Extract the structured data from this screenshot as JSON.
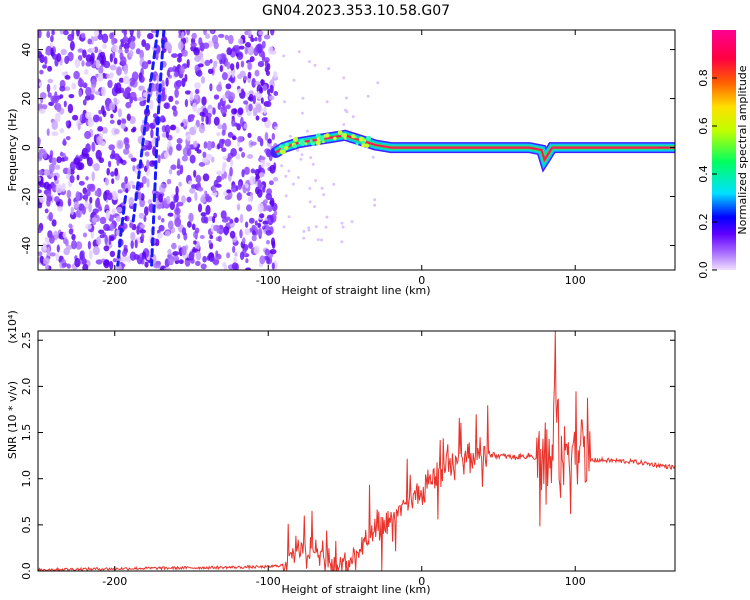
{
  "title": "GN04.2023.353.10.58.G07",
  "chart_data": [
    {
      "type": "heatmap",
      "xlabel": "Height of straight line (km)",
      "ylabel": "Frequency (Hz)",
      "xlim": [
        -250,
        165
      ],
      "ylim": [
        -50,
        48
      ],
      "xticks": [
        -200,
        -100,
        0,
        100
      ],
      "yticks": [
        -40,
        -20,
        0,
        20,
        40
      ],
      "colorbar": {
        "label": "Normalized spectral amplitude",
        "range": [
          0,
          1
        ],
        "ticks": [
          "0.0",
          "0.2",
          "0.4",
          "0.6",
          "0.8"
        ],
        "colormap": [
          "#f0e0ff",
          "#a060ff",
          "#6000ff",
          "#0000ff",
          "#00e0ff",
          "#00ff60",
          "#c0ff00",
          "#ffe000",
          "#ff6000",
          "#ff0040",
          "#ff0090"
        ]
      },
      "trace": {
        "x": [
          -95,
          -90,
          -80,
          -70,
          -60,
          -50,
          -40,
          -30,
          -20,
          -10,
          0,
          20,
          40,
          60,
          70,
          78,
          80,
          85,
          100,
          110,
          165
        ],
        "y": [
          -2,
          0,
          2,
          3,
          4,
          5,
          3,
          1,
          0,
          0,
          0,
          0,
          0,
          0,
          0,
          -1,
          -5,
          0,
          0,
          0,
          0
        ]
      },
      "noise_region": [
        -250,
        -95
      ],
      "streaks": [
        {
          "x": [
            -172,
            -180,
            -188
          ],
          "y": [
            48,
            10,
            -30
          ]
        },
        {
          "x": [
            -168,
            -172,
            -176
          ],
          "y": [
            48,
            10,
            -48
          ]
        },
        {
          "x": [
            -193,
            -196,
            -198
          ],
          "y": [
            -20,
            -35,
            -48
          ]
        }
      ]
    },
    {
      "type": "line",
      "xlabel": "Height of straight line (km)",
      "ylabel": "SNR (10 * v/v)",
      "scale_label": "(x10⁴)",
      "xlim": [
        -250,
        165
      ],
      "ylim": [
        0,
        2.6
      ],
      "xticks": [
        -200,
        -100,
        0,
        100
      ],
      "yticks": [
        0.0,
        0.5,
        1.0,
        1.5,
        2.0,
        2.5
      ],
      "ytick_labels": [
        "0.0",
        "0.5",
        "1.0",
        "1.5",
        "2.0",
        "2.5"
      ],
      "series": [
        {
          "color": "#e8322a",
          "x": [
            -250,
            -200,
            -150,
            -100,
            -90,
            -85,
            -80,
            -70,
            -60,
            -50,
            -45,
            -40,
            -30,
            -20,
            -10,
            0,
            10,
            20,
            30,
            40,
            50,
            60,
            70,
            80,
            85,
            88,
            90,
            95,
            100,
            105,
            110,
            120,
            140,
            165
          ],
          "y": [
            0.0,
            0.01,
            0.02,
            0.03,
            0.05,
            0.2,
            0.3,
            0.2,
            0.1,
            0.05,
            0.1,
            0.25,
            0.4,
            0.55,
            0.7,
            0.9,
            1.05,
            1.15,
            1.25,
            1.27,
            1.25,
            1.23,
            1.25,
            1.2,
            1.1,
            2.3,
            1.0,
            1.4,
            1.35,
            1.3,
            1.2,
            1.2,
            1.18,
            1.12
          ]
        }
      ]
    }
  ]
}
